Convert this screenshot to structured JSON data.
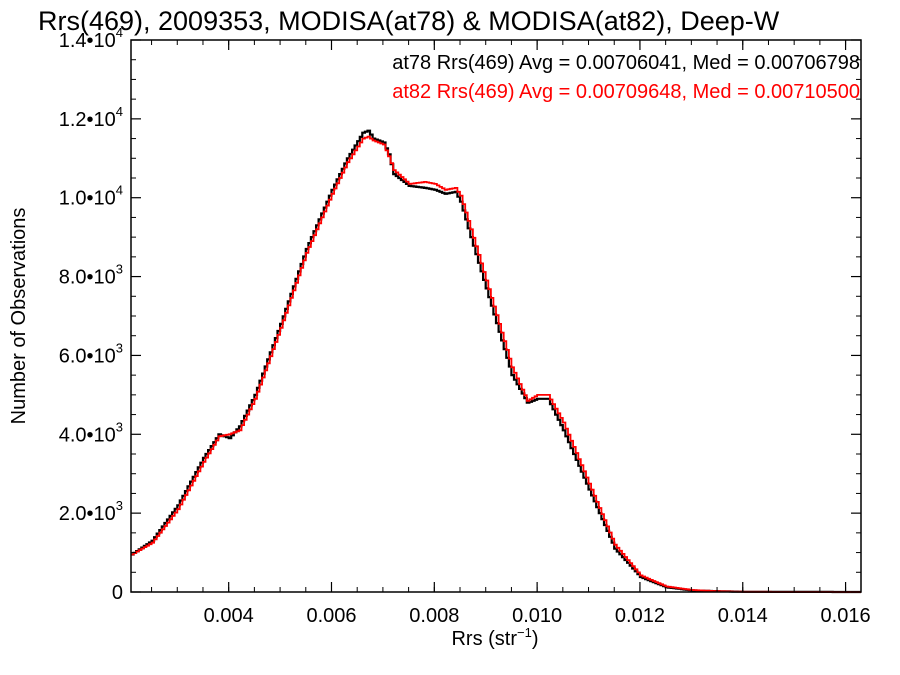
{
  "chart_data": {
    "type": "line",
    "title": "Rrs(469), 2009353, MODISA(at78) & MODISA(at82), Deep-W",
    "xlabel": "Rrs (str",
    "xlabel_sup": "−1",
    "xlabel_end": ")",
    "ylabel": "Number of Observations",
    "xlim": [
      0.0021,
      0.0163
    ],
    "ylim": [
      0,
      14000
    ],
    "grid": false,
    "x_ticks": [
      {
        "value": 0.004,
        "label": "0.004"
      },
      {
        "value": 0.006,
        "label": "0.006"
      },
      {
        "value": 0.008,
        "label": "0.008"
      },
      {
        "value": 0.01,
        "label": "0.010"
      },
      {
        "value": 0.012,
        "label": "0.012"
      },
      {
        "value": 0.014,
        "label": "0.014"
      },
      {
        "value": 0.016,
        "label": "0.016"
      }
    ],
    "y_ticks": [
      {
        "value": 0,
        "mant": "0",
        "exp": ""
      },
      {
        "value": 2000,
        "mant": "2.0•10",
        "exp": "3"
      },
      {
        "value": 4000,
        "mant": "4.0•10",
        "exp": "3"
      },
      {
        "value": 6000,
        "mant": "6.0•10",
        "exp": "3"
      },
      {
        "value": 8000,
        "mant": "8.0•10",
        "exp": "3"
      },
      {
        "value": 10000,
        "mant": "1.0•10",
        "exp": "4"
      },
      {
        "value": 12000,
        "mant": "1.2•10",
        "exp": "4"
      },
      {
        "value": 14000,
        "mant": "1.4•10",
        "exp": "4"
      }
    ],
    "annotations": [
      {
        "text": "at78 Rrs(469) Avg = 0.00706041, Med = 0.00706798",
        "color": "#000000"
      },
      {
        "text": "at82 Rrs(469) Avg = 0.00709648, Med = 0.00710500",
        "color": "#ff0000"
      }
    ],
    "series": [
      {
        "color": "#000000",
        "x": [
          0.0021,
          0.0025,
          0.003,
          0.0035,
          0.0038,
          0.004,
          0.0042,
          0.0045,
          0.005,
          0.0055,
          0.006,
          0.0063,
          0.0066,
          0.0067,
          0.0068,
          0.007,
          0.0071,
          0.0072,
          0.0075,
          0.0078,
          0.008,
          0.0082,
          0.0084,
          0.0085,
          0.0087,
          0.009,
          0.0095,
          0.0098,
          0.01,
          0.0102,
          0.0105,
          0.011,
          0.0115,
          0.012,
          0.0125,
          0.013,
          0.0135,
          0.014,
          0.0163
        ],
        "y": [
          950,
          1300,
          2200,
          3400,
          4000,
          3900,
          4200,
          5000,
          6800,
          8700,
          10200,
          11000,
          11650,
          11700,
          11500,
          11400,
          11100,
          10600,
          10300,
          10250,
          10200,
          10100,
          10150,
          9900,
          9000,
          7700,
          5500,
          4800,
          4900,
          4900,
          4100,
          2600,
          1100,
          380,
          120,
          40,
          20,
          5,
          0
        ]
      },
      {
        "color": "#ff0000",
        "x": [
          0.0021,
          0.0025,
          0.003,
          0.0035,
          0.0038,
          0.004,
          0.0042,
          0.0045,
          0.005,
          0.0055,
          0.006,
          0.0063,
          0.0066,
          0.0067,
          0.0068,
          0.007,
          0.0071,
          0.0072,
          0.0075,
          0.0078,
          0.008,
          0.0082,
          0.0084,
          0.0085,
          0.0087,
          0.009,
          0.0095,
          0.0098,
          0.01,
          0.0102,
          0.0105,
          0.011,
          0.0115,
          0.012,
          0.0125,
          0.013,
          0.0135,
          0.014,
          0.0163
        ],
        "y": [
          950,
          1250,
          2100,
          3300,
          3950,
          4000,
          4100,
          4900,
          6700,
          8600,
          10100,
          10900,
          11500,
          11550,
          11450,
          11350,
          11050,
          10700,
          10350,
          10400,
          10350,
          10200,
          10250,
          10050,
          9200,
          7900,
          5700,
          4850,
          5000,
          5000,
          4300,
          2750,
          1200,
          420,
          140,
          50,
          20,
          5,
          0
        ]
      }
    ]
  }
}
